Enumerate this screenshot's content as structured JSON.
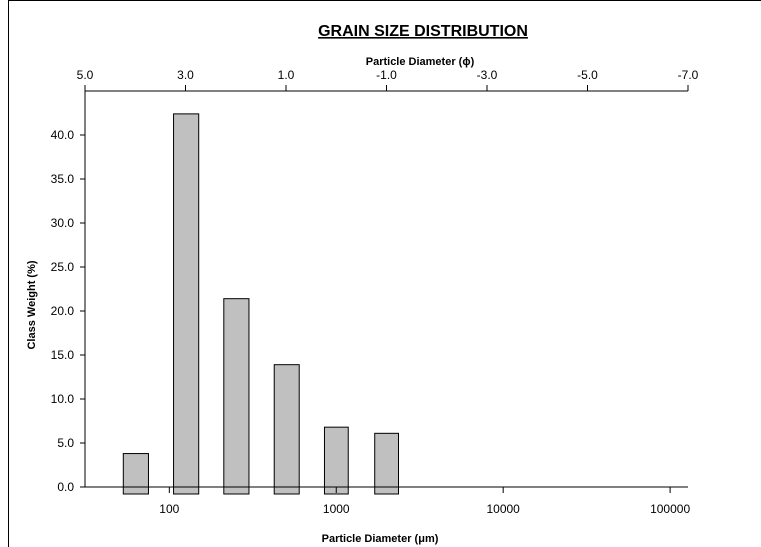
{
  "chart_data": {
    "type": "bar",
    "title": "GRAIN SIZE DISTRIBUTION",
    "xlabel_top": "Particle Diameter (ϕ)",
    "xlabel_bottom": "Particle Diameter (μm)",
    "ylabel": "Class Weight (%)",
    "x_scale": "log",
    "xlim": [
      31.25,
      128000
    ],
    "ylim": [
      0,
      45
    ],
    "grid": false,
    "legend": "none",
    "bar_color": "#c0c0c0",
    "bar_edge_color": "#000000",
    "bars": [
      {
        "x_from": 53,
        "x_to": 75,
        "value": 3.8
      },
      {
        "x_from": 106,
        "x_to": 150,
        "value": 42.4
      },
      {
        "x_from": 212,
        "x_to": 300,
        "value": 21.4
      },
      {
        "x_from": 425,
        "x_to": 600,
        "value": 13.9
      },
      {
        "x_from": 850,
        "x_to": 1180,
        "value": 6.8
      },
      {
        "x_from": 1700,
        "x_to": 2360,
        "value": 6.1
      }
    ],
    "y_ticks": [
      "0.0",
      "5.0",
      "10.0",
      "15.0",
      "20.0",
      "25.0",
      "30.0",
      "35.0",
      "40.0"
    ],
    "bottom_ticks": [
      "100",
      "1000",
      "10000",
      "100000"
    ],
    "top_ticks": [
      "5.0",
      "3.0",
      "1.0",
      "-1.0",
      "-3.0",
      "-5.0",
      "-7.0"
    ]
  }
}
